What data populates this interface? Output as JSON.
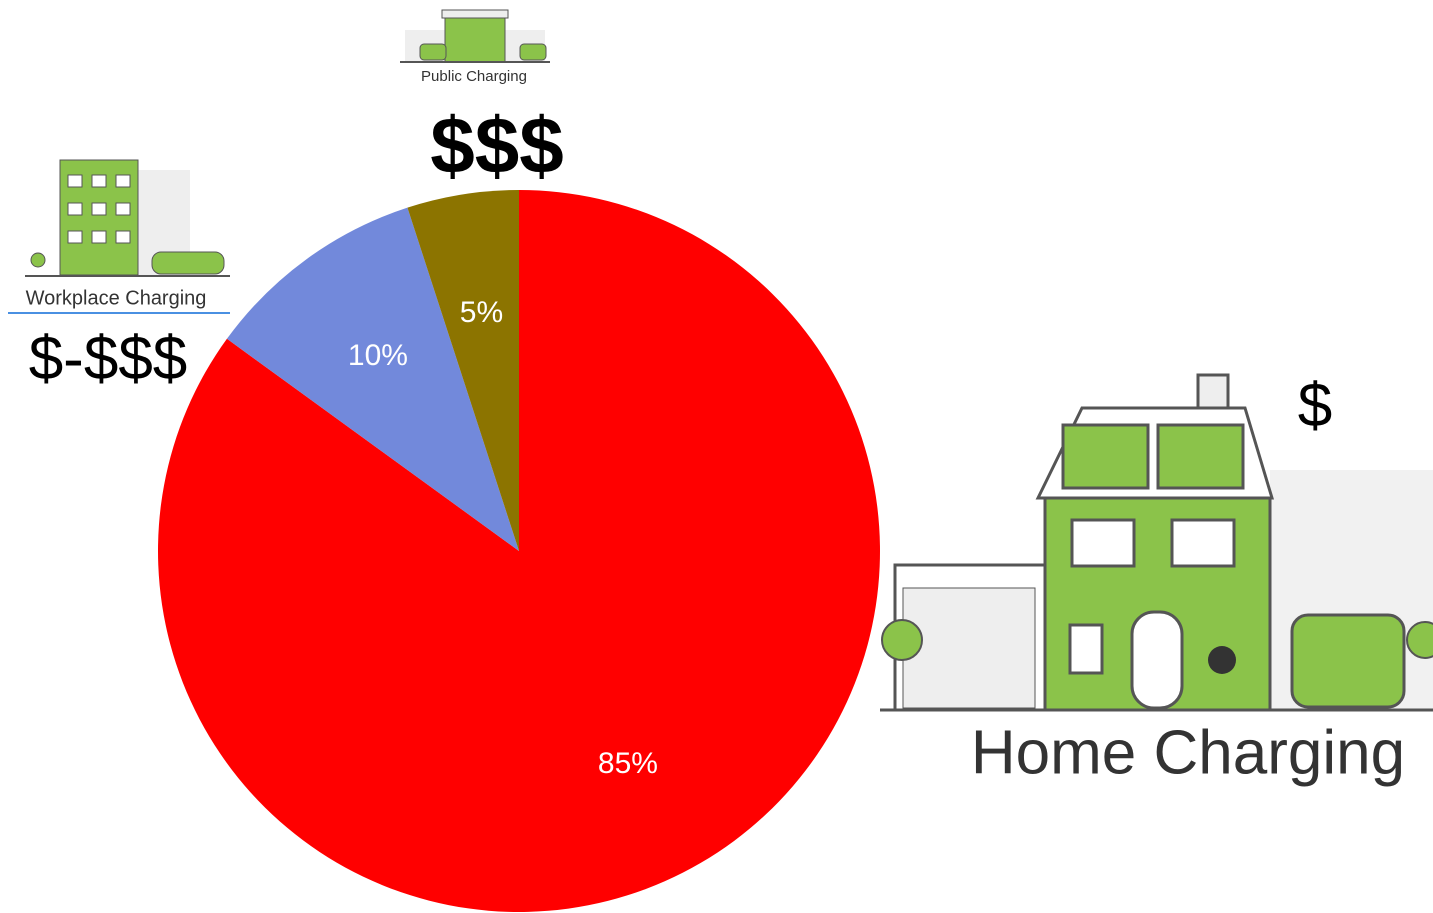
{
  "chart_data": {
    "type": "pie",
    "categories": [
      "Home Charging",
      "Workplace Charging",
      "Public Charging"
    ],
    "values": [
      85,
      10,
      5
    ],
    "value_labels": [
      "85%",
      "10%",
      "5%"
    ],
    "colors": [
      "#ff0000",
      "#7289db",
      "#8c7400"
    ],
    "cost_labels": [
      "$",
      "$-$$$",
      "$$$"
    ]
  }
}
